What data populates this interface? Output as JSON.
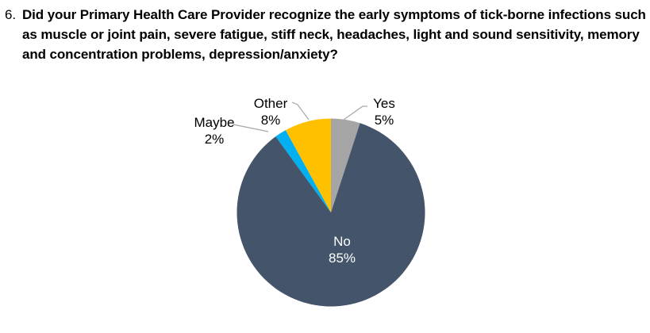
{
  "question": {
    "number": "6.",
    "text": "Did your Primary Health Care Provider recognize the early symptoms of tick-borne infections such as muscle or joint pain, severe fatigue, stiff neck, headaches, light and sound sensitivity, memory and concentration problems, depression/anxiety?"
  },
  "chart_data": {
    "type": "pie",
    "title": "",
    "start_angle_deg": 0,
    "direction": "clockwise",
    "total": 100,
    "slices": [
      {
        "label": "Yes",
        "value": 5,
        "pct_label": "5%",
        "color": "#A5A5A5",
        "label_color": "#000000",
        "label_placement": "outside-right"
      },
      {
        "label": "No",
        "value": 85,
        "pct_label": "85%",
        "color": "#44546A",
        "label_color": "#FFFFFF",
        "label_placement": "inside"
      },
      {
        "label": "Maybe",
        "value": 2,
        "pct_label": "2%",
        "color": "#00B0F0",
        "label_color": "#000000",
        "label_placement": "outside-left"
      },
      {
        "label": "Other",
        "value": 8,
        "pct_label": "8%",
        "color": "#FFC000",
        "label_color": "#000000",
        "label_placement": "outside-top"
      }
    ],
    "leader_line_color": "#A6A6A6",
    "legend": "none",
    "background": "#FFFFFF"
  }
}
